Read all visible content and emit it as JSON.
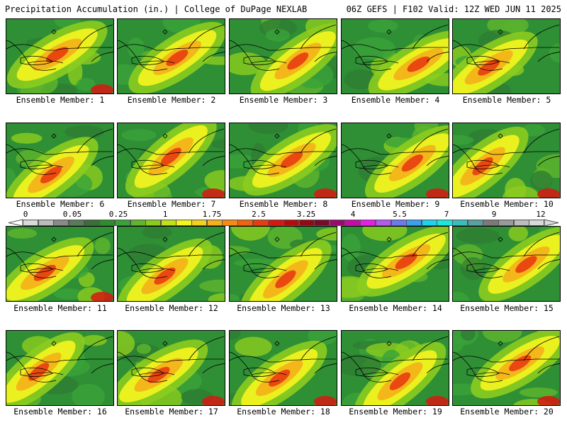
{
  "header": {
    "left": "Precipitation Accumulation (in.) | College of DuPage NEXLAB",
    "right": "06Z GEFS | F102 Valid: 12Z WED JUN 11 2025"
  },
  "members": [
    {
      "label": "Ensemble Member: 1"
    },
    {
      "label": "Ensemble Member: 2"
    },
    {
      "label": "Ensemble Member: 3"
    },
    {
      "label": "Ensemble Member: 4"
    },
    {
      "label": "Ensemble Member: 5"
    },
    {
      "label": "Ensemble Member: 6"
    },
    {
      "label": "Ensemble Member: 7"
    },
    {
      "label": "Ensemble Member: 8"
    },
    {
      "label": "Ensemble Member: 9"
    },
    {
      "label": "Ensemble Member: 10"
    },
    {
      "label": "Ensemble Member: 11"
    },
    {
      "label": "Ensemble Member: 12"
    },
    {
      "label": "Ensemble Member: 13"
    },
    {
      "label": "Ensemble Member: 14"
    },
    {
      "label": "Ensemble Member: 15"
    },
    {
      "label": "Ensemble Member: 16"
    },
    {
      "label": "Ensemble Member: 17"
    },
    {
      "label": "Ensemble Member: 18"
    },
    {
      "label": "Ensemble Member: 19"
    },
    {
      "label": "Ensemble Member: 20"
    }
  ],
  "colorbar": {
    "labels": [
      "0",
      "0.05",
      "0.25",
      "1",
      "1.75",
      "2.5",
      "3.25",
      "4",
      "5.5",
      "7",
      "9",
      "12"
    ],
    "colors": [
      "#d9d9d9",
      "#bcbcbc",
      "#8a8a8a",
      "#5a7a5a",
      "#3a6e3a",
      "#2e8b2e",
      "#3aa13a",
      "#5fb52c",
      "#8ccc1f",
      "#c4e01a",
      "#f5f51f",
      "#f5d21a",
      "#f5b01a",
      "#f58a14",
      "#f0640f",
      "#e83c0f",
      "#d8180f",
      "#b80c0c",
      "#940a14",
      "#7a0a2c",
      "#9a0a6e",
      "#c80aaa",
      "#e61ee6",
      "#b45af0",
      "#6e78f0",
      "#3ca0f0",
      "#1ed2f0",
      "#1ee6dc",
      "#3cbcbc",
      "#5aa0a0",
      "#7a7a7a",
      "#9a9a9a",
      "#bcbcbc",
      "#d9d9d9"
    ]
  }
}
